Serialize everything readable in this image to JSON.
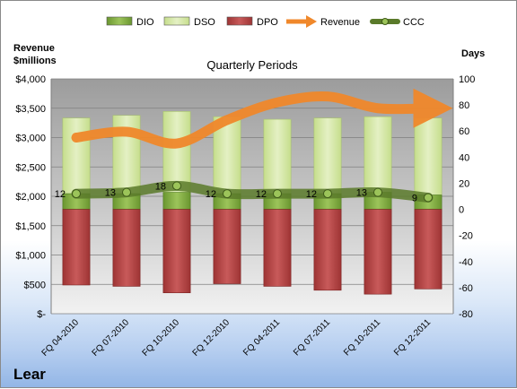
{
  "company": "Lear",
  "chart_data": {
    "type": "bar",
    "title": "Quarterly Periods",
    "ylabel_left": "Revenue\n$millions",
    "ylabel_right": "Days",
    "categories": [
      "FQ 04-2010",
      "FQ 07-2010",
      "FQ 10-2010",
      "FQ 12-2010",
      "FQ 04-2011",
      "FQ 07-2011",
      "FQ 10-2011",
      "FQ 12-2011"
    ],
    "left_axis": {
      "min": 0,
      "max": 4000,
      "step": 500,
      "tick_labels": [
        "$-",
        "$500",
        "$1,000",
        "$1,500",
        "$2,000",
        "$2,500",
        "$3,000",
        "$3,500",
        "$4,000"
      ]
    },
    "right_axis": {
      "min": -80,
      "max": 100,
      "step": 20,
      "tick_labels": [
        "-80",
        "-60",
        "-40",
        "-20",
        "0",
        "20",
        "40",
        "60",
        "80",
        "100"
      ]
    },
    "legend_position": "top",
    "series": [
      {
        "name": "DIO",
        "kind": "stacked-bar",
        "axis": "right",
        "color": "#7aa83b",
        "values": [
          12,
          12,
          13,
          12,
          12,
          12,
          13,
          11
        ]
      },
      {
        "name": "DSO",
        "kind": "stacked-bar",
        "axis": "right",
        "color": "#d7e8a9",
        "values": [
          58,
          60,
          62,
          59,
          57,
          58,
          58,
          59
        ]
      },
      {
        "name": "DPO",
        "kind": "negative-bar",
        "axis": "right",
        "color": "#b84747",
        "values": [
          -58,
          -59,
          -64,
          -57,
          -59,
          -62,
          -65,
          -61
        ]
      },
      {
        "name": "Revenue",
        "kind": "line",
        "axis": "left",
        "color": "#f0882b",
        "values": [
          3000,
          3100,
          2900,
          3300,
          3600,
          3700,
          3500,
          3500
        ]
      },
      {
        "name": "CCC",
        "kind": "line",
        "axis": "right",
        "color": "#5a7a2a",
        "values": [
          12,
          13,
          18,
          12,
          12,
          12,
          13,
          9
        ]
      }
    ],
    "data_labels": {
      "series": "CCC",
      "labels": [
        "12",
        "13",
        "18",
        "12",
        "12",
        "12",
        "13",
        "9"
      ]
    }
  }
}
